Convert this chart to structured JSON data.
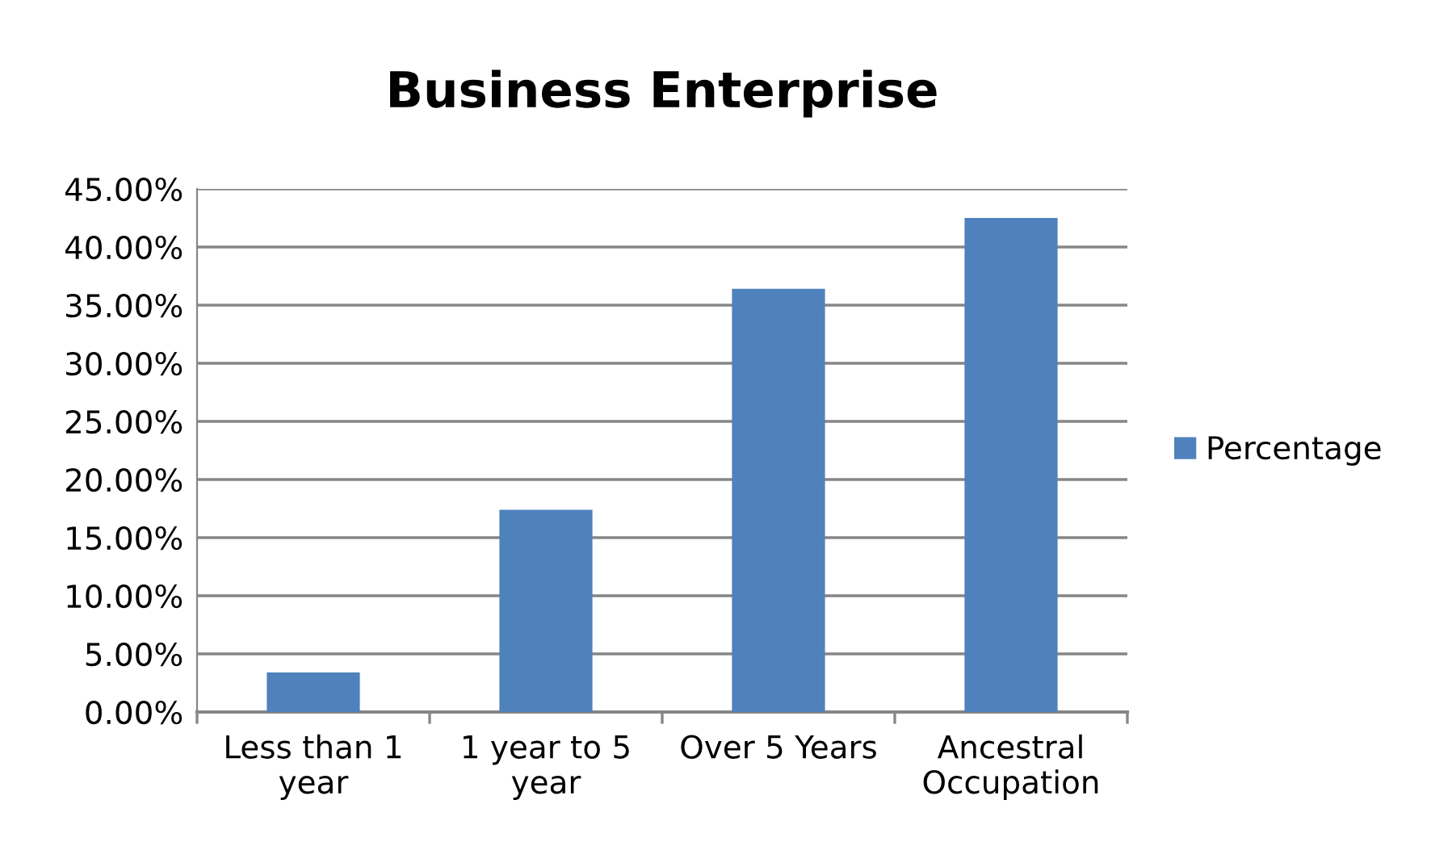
{
  "chart_data": {
    "type": "bar",
    "title": "Business Enterprise",
    "categories": [
      "Less than 1\nyear",
      "1 year to 5\nyear",
      "Over 5 Years",
      "Ancestral\nOccupation"
    ],
    "series": [
      {
        "name": "Percentage",
        "color": "#4f81bd",
        "values": [
          3.4,
          17.4,
          36.4,
          42.5
        ]
      }
    ],
    "ylim": [
      0,
      45
    ],
    "yticks": [
      {
        "value": 0,
        "label": "0.00%"
      },
      {
        "value": 5,
        "label": "5.00%"
      },
      {
        "value": 10,
        "label": "10.00%"
      },
      {
        "value": 15,
        "label": "15.00%"
      },
      {
        "value": 20,
        "label": "20.00%"
      },
      {
        "value": 25,
        "label": "25.00%"
      },
      {
        "value": 30,
        "label": "30.00%"
      },
      {
        "value": 35,
        "label": "35.00%"
      },
      {
        "value": 40,
        "label": "40.00%"
      },
      {
        "value": 45,
        "label": "45.00%"
      }
    ],
    "grid": "y",
    "legend": "right"
  }
}
